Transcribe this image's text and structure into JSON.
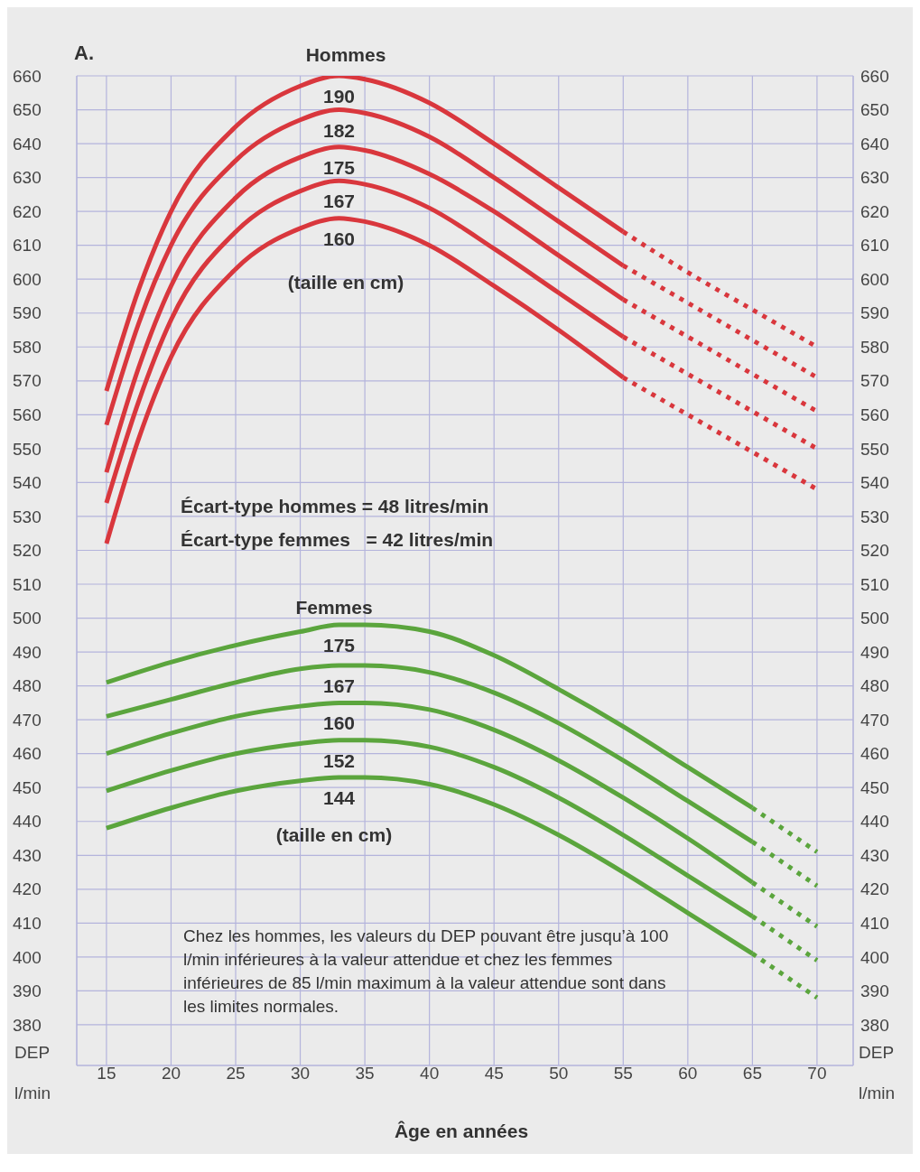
{
  "chart_data": {
    "type": "line",
    "title": "A.",
    "xlabel": "Âge en années",
    "ylabel": "DEP l/min",
    "y2label": "DEP l/min",
    "xlim": [
      12.7,
      72.8
    ],
    "xticks": [
      15,
      20,
      25,
      30,
      35,
      40,
      45,
      50,
      55,
      60,
      65,
      70
    ],
    "ylim": [
      368,
      660
    ],
    "yticks": [
      380,
      390,
      400,
      410,
      420,
      430,
      440,
      450,
      460,
      470,
      480,
      490,
      500,
      510,
      520,
      530,
      540,
      550,
      560,
      570,
      580,
      590,
      600,
      610,
      620,
      630,
      640,
      650,
      660
    ],
    "y2lim": [
      368,
      660
    ],
    "y2ticks": [
      380,
      390,
      400,
      410,
      420,
      430,
      440,
      450,
      460,
      470,
      480,
      490,
      500,
      510,
      520,
      530,
      540,
      550,
      560,
      570,
      580,
      590,
      600,
      610,
      620,
      630,
      640,
      650,
      660
    ],
    "grid": true,
    "marker": "none",
    "line_style": "solid",
    "annotations": [
      "Hommes",
      "(taille en cm)",
      "Écart-type hommes = 48 litres/min",
      "Écart-type femmes   = 42 litres/min",
      "Femmes",
      "(taille en cm)",
      "Chez les hommes, les valeurs du DEP pouvant être jusqu’à 100 l/min inférieures à la valeur attendue et chez les femmes inférieures de 85 l/min maximum à la valeur attendue sont dans les limites normales."
    ],
    "series": [
      {
        "name": "190",
        "color": "#d9373d",
        "x": [
          15,
          17.5,
          20,
          25,
          30,
          33,
          35,
          40,
          45,
          50,
          55
        ],
        "values": [
          567,
          597,
          620,
          645,
          657,
          660,
          659,
          652,
          640,
          627,
          614
        ]
      },
      {
        "color": "#d9373d",
        "line_style": "dotted",
        "x": [
          55,
          60,
          65,
          70
        ],
        "values": [
          614,
          602,
          591,
          580
        ]
      },
      {
        "name": "182",
        "color": "#d9373d",
        "x": [
          15,
          17.5,
          20,
          25,
          30,
          33,
          35,
          40,
          45,
          50,
          55
        ],
        "values": [
          557,
          587,
          610,
          635,
          647,
          650,
          649,
          642,
          630,
          617,
          604
        ]
      },
      {
        "color": "#d9373d",
        "line_style": "dotted",
        "x": [
          55,
          60,
          65,
          70
        ],
        "values": [
          604,
          593,
          582,
          571
        ]
      },
      {
        "name": "175",
        "color": "#d9373d",
        "x": [
          15,
          17.5,
          20,
          25,
          30,
          33,
          35,
          40,
          45,
          50,
          55
        ],
        "values": [
          543,
          574,
          598,
          624,
          636,
          639,
          638,
          631,
          620,
          607,
          594
        ]
      },
      {
        "color": "#d9373d",
        "line_style": "dotted",
        "x": [
          55,
          60,
          65,
          70
        ],
        "values": [
          594,
          583,
          572,
          561
        ]
      },
      {
        "name": "167",
        "color": "#d9373d",
        "x": [
          15,
          17.5,
          20,
          25,
          30,
          33,
          35,
          40,
          45,
          50,
          55
        ],
        "values": [
          534,
          564,
          588,
          614,
          626,
          629,
          628,
          621,
          609,
          596,
          583
        ]
      },
      {
        "color": "#d9373d",
        "line_style": "dotted",
        "x": [
          55,
          60,
          65,
          70
        ],
        "values": [
          583,
          572,
          561,
          550
        ]
      },
      {
        "name": "160",
        "color": "#d9373d",
        "x": [
          15,
          17.5,
          20,
          25,
          30,
          33,
          35,
          40,
          45,
          50,
          55
        ],
        "values": [
          522,
          553,
          577,
          603,
          615,
          618,
          617,
          610,
          598,
          585,
          571
        ]
      },
      {
        "color": "#d9373d",
        "line_style": "dotted",
        "x": [
          55,
          60,
          65,
          70
        ],
        "values": [
          571,
          560,
          549,
          538
        ]
      },
      {
        "name": "175",
        "color": "#5ba53d",
        "x": [
          15,
          20,
          25,
          30,
          33,
          35,
          40,
          45,
          50,
          55,
          60,
          65
        ],
        "values": [
          481,
          487,
          492,
          496,
          498,
          498,
          496,
          489,
          479,
          468,
          456,
          444
        ]
      },
      {
        "color": "#5ba53d",
        "line_style": "dotted",
        "x": [
          65,
          70
        ],
        "values": [
          444,
          431
        ]
      },
      {
        "name": "167",
        "color": "#5ba53d",
        "x": [
          15,
          20,
          25,
          30,
          33,
          35,
          40,
          45,
          50,
          55,
          60,
          65
        ],
        "values": [
          471,
          476,
          481,
          485,
          486,
          486,
          484,
          478,
          469,
          458,
          446,
          434
        ]
      },
      {
        "color": "#5ba53d",
        "line_style": "dotted",
        "x": [
          65,
          70
        ],
        "values": [
          434,
          421
        ]
      },
      {
        "name": "160",
        "color": "#5ba53d",
        "x": [
          15,
          20,
          25,
          30,
          33,
          35,
          40,
          45,
          50,
          55,
          60,
          65
        ],
        "values": [
          460,
          466,
          471,
          474,
          475,
          475,
          473,
          467,
          458,
          447,
          435,
          422
        ]
      },
      {
        "color": "#5ba53d",
        "line_style": "dotted",
        "x": [
          65,
          70
        ],
        "values": [
          422,
          409
        ]
      },
      {
        "name": "152",
        "color": "#5ba53d",
        "x": [
          15,
          20,
          25,
          30,
          33,
          35,
          40,
          45,
          50,
          55,
          60,
          65
        ],
        "values": [
          449,
          455,
          460,
          463,
          464,
          464,
          462,
          456,
          447,
          436,
          424,
          412
        ]
      },
      {
        "color": "#5ba53d",
        "line_style": "dotted",
        "x": [
          65,
          70
        ],
        "values": [
          412,
          399
        ]
      },
      {
        "name": "144",
        "color": "#5ba53d",
        "x": [
          15,
          20,
          25,
          30,
          33,
          35,
          40,
          45,
          50,
          55,
          60,
          65
        ],
        "values": [
          438,
          444,
          449,
          452,
          453,
          453,
          451,
          445,
          436,
          425,
          413,
          401
        ]
      },
      {
        "color": "#5ba53d",
        "line_style": "dotted",
        "x": [
          65,
          70
        ],
        "values": [
          401,
          388
        ]
      }
    ]
  }
}
